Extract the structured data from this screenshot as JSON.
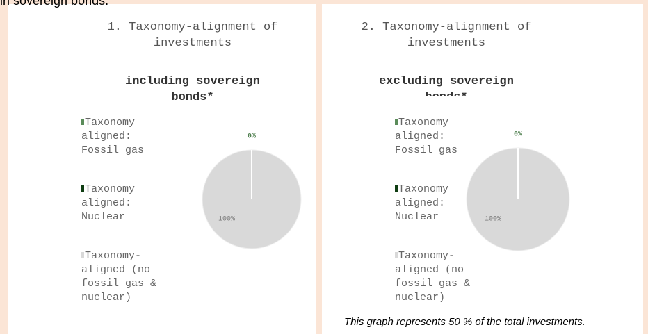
{
  "header": "in sovereign bonds.",
  "note": "This graph represents 50 % of the total investments.",
  "chart_data": [
    {
      "type": "pie",
      "title": "1. Taxonomy-alignment of investments",
      "subtitle": "including sovereign bonds*",
      "categories": [
        "Taxonomy aligned: Fossil gas",
        "Taxonomy aligned: Nuclear",
        "Taxonomy-aligned (no fossil gas & nuclear)"
      ],
      "values": [
        0,
        0,
        100
      ],
      "value_labels": [
        "0%",
        null,
        "100%"
      ],
      "colors": [
        "#5b8c5a",
        "#0f3d12",
        "#d9d9d9"
      ]
    },
    {
      "type": "pie",
      "title": "2. Taxonomy-alignment of investments",
      "subtitle": "excluding sovereign bonds*",
      "categories": [
        "Taxonomy aligned: Fossil gas",
        "Taxonomy aligned: Nuclear",
        "Taxonomy-aligned (no fossil gas & nuclear)"
      ],
      "values": [
        0,
        0,
        100
      ],
      "value_labels": [
        "0%",
        null,
        "100%"
      ],
      "colors": [
        "#5b8c5a",
        "#0f3d12",
        "#d9d9d9"
      ]
    }
  ]
}
